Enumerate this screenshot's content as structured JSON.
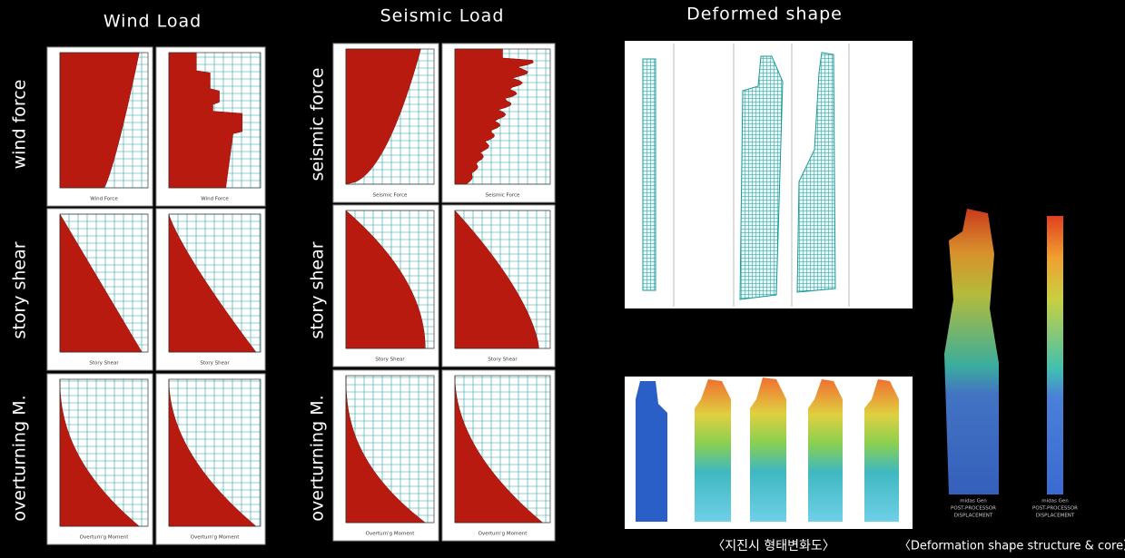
{
  "titles": {
    "wind": "Wind Load",
    "seismic": "Seismic Load",
    "deformed": "Deformed shape"
  },
  "wind_rows": [
    "wind force",
    "story shear",
    "overturning M."
  ],
  "seismic_rows": [
    "seismic force",
    "story shear",
    "overturning M."
  ],
  "wind_axis_labels": [
    [
      "Wind Force",
      "Wind Force"
    ],
    [
      "Story Shear",
      "Story Shear"
    ],
    [
      "Overturn'g Moment",
      "Overturn'g Moment"
    ]
  ],
  "seismic_axis_labels": [
    [
      "Seismic Force",
      "Seismic Force"
    ],
    [
      "Story Shear",
      "Story Shear"
    ],
    [
      "Overturn'g Moment",
      "Overturn'g Moment"
    ]
  ],
  "tower_labels": [
    [
      "midas Gen",
      "POST-PROCESSOR",
      "DISPLACEMENT"
    ],
    [
      "midas Gen",
      "POST-PROCESSOR",
      "DISPLACEMENT"
    ]
  ],
  "captions": [
    "〈지진시 형태변화도〉",
    "〈Deformation shape structure & core〉"
  ]
}
